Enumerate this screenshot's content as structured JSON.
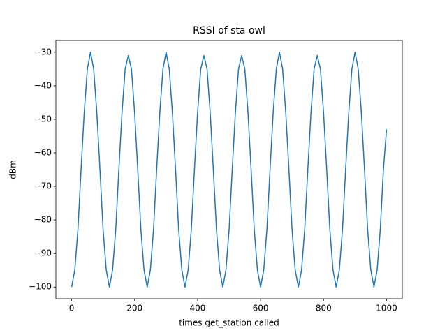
{
  "chart_data": {
    "type": "line",
    "title": "RSSI of sta owl",
    "xlabel": "times get_station called",
    "ylabel": "dBm",
    "x": [
      0,
      10,
      20,
      30,
      40,
      50,
      60,
      70,
      80,
      90,
      100,
      110,
      120,
      130,
      140,
      150,
      160,
      170,
      180,
      190,
      200,
      210,
      220,
      230,
      240,
      250,
      260,
      270,
      280,
      290,
      300,
      310,
      320,
      330,
      340,
      350,
      360,
      370,
      380,
      390,
      400,
      410,
      420,
      430,
      440,
      450,
      460,
      470,
      480,
      490,
      500,
      510,
      520,
      530,
      540,
      550,
      560,
      570,
      580,
      590,
      600,
      610,
      620,
      630,
      640,
      650,
      660,
      670,
      680,
      690,
      700,
      710,
      720,
      730,
      740,
      750,
      760,
      770,
      780,
      790,
      800,
      810,
      820,
      830,
      840,
      850,
      860,
      870,
      880,
      890,
      900,
      910,
      920,
      930,
      940,
      950,
      960,
      970,
      980,
      990,
      1000
    ],
    "series": [
      {
        "name": "RSSI",
        "color": "#1f77b4",
        "values": [
          -100,
          -95,
          -83,
          -65,
          -48,
          -35,
          -30,
          -35,
          -48,
          -65,
          -83,
          -95,
          -100,
          -95,
          -83,
          -65,
          -48,
          -35,
          -31,
          -35,
          -48,
          -65,
          -83,
          -95,
          -100,
          -95,
          -83,
          -65,
          -48,
          -35,
          -30,
          -35,
          -48,
          -65,
          -83,
          -95,
          -100,
          -95,
          -83,
          -65,
          -48,
          -35,
          -31,
          -35,
          -48,
          -65,
          -83,
          -95,
          -100,
          -95,
          -83,
          -65,
          -48,
          -35,
          -31,
          -35,
          -48,
          -65,
          -83,
          -95,
          -100,
          -95,
          -83,
          -65,
          -48,
          -35,
          -30,
          -35,
          -48,
          -65,
          -83,
          -95,
          -100,
          -95,
          -83,
          -65,
          -48,
          -35,
          -31,
          -35,
          -48,
          -65,
          -83,
          -95,
          -100,
          -95,
          -83,
          -65,
          -48,
          -35,
          -30,
          -35,
          -48,
          -65,
          -83,
          -95,
          -100,
          -95,
          -83,
          -65,
          -53
        ]
      }
    ],
    "xlim": [
      -50,
      1050
    ],
    "xticks": [
      0,
      200,
      400,
      600,
      800,
      1000
    ],
    "ylim": [
      -103.5,
      -26.5
    ],
    "yticks": [
      {
        "value": -100,
        "label": "−100"
      },
      {
        "value": -90,
        "label": "−90"
      },
      {
        "value": -80,
        "label": "−80"
      },
      {
        "value": -70,
        "label": "−70"
      },
      {
        "value": -60,
        "label": "−60"
      },
      {
        "value": -50,
        "label": "−50"
      },
      {
        "value": -40,
        "label": "−40"
      },
      {
        "value": -30,
        "label": "−30"
      }
    ]
  }
}
